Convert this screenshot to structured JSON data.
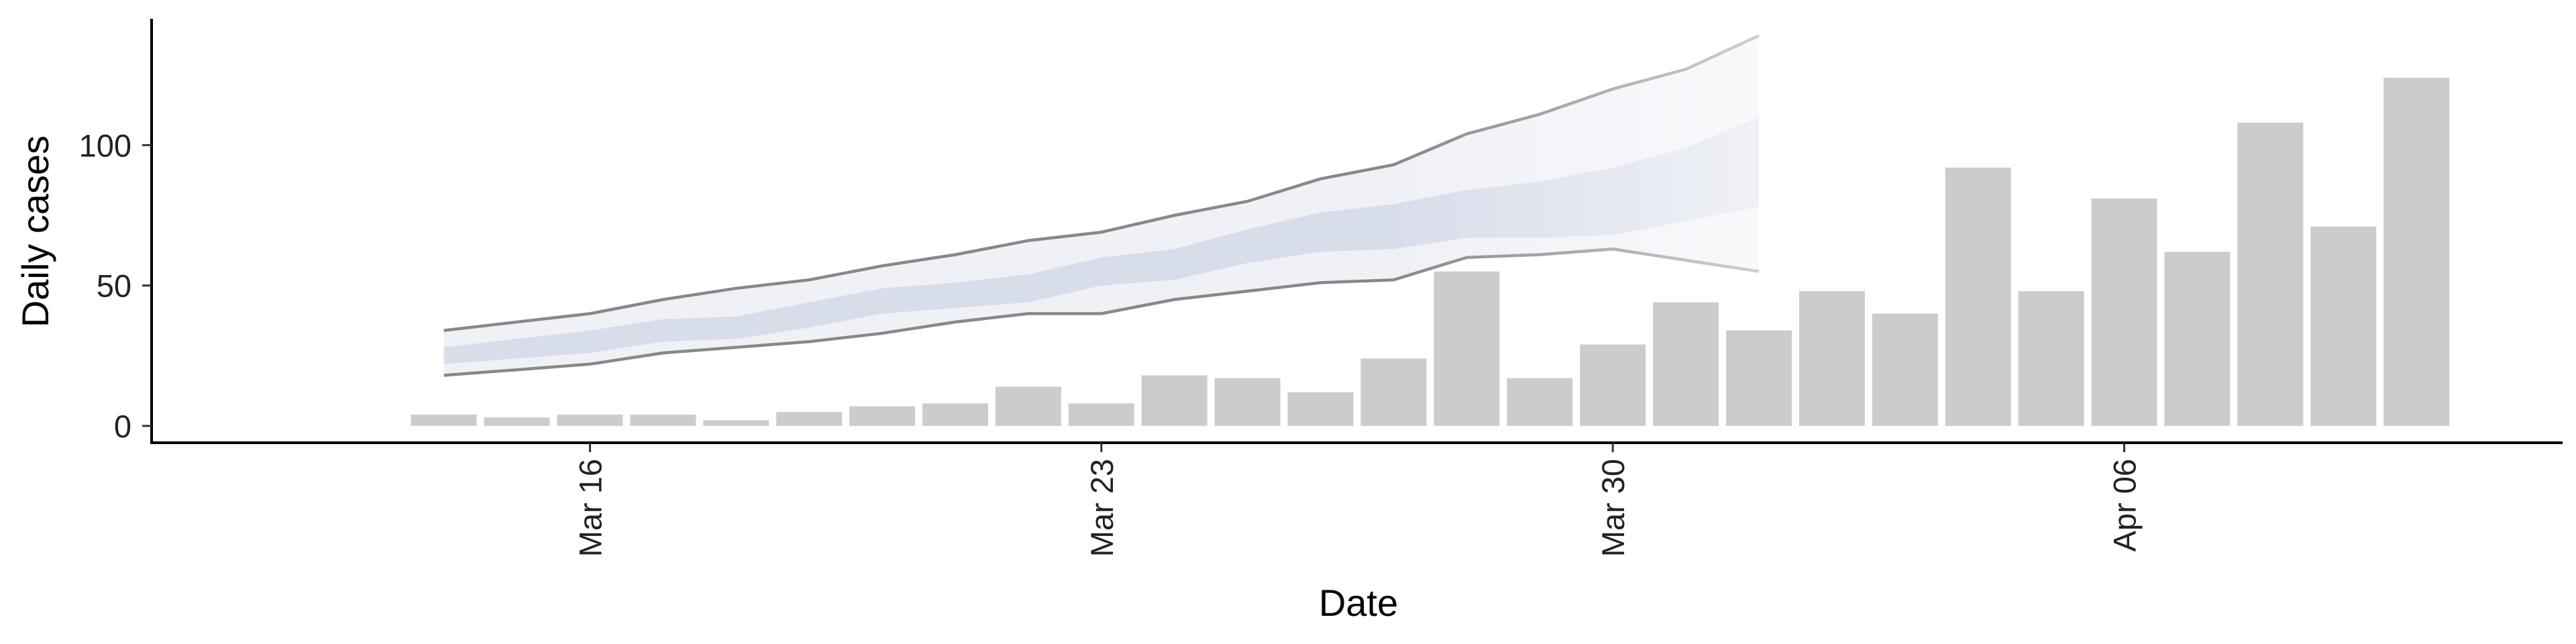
{
  "chart_data": {
    "type": "bar",
    "xlabel": "Date",
    "ylabel": "Daily cases",
    "ylim": [
      -6,
      145
    ],
    "y_ticks": [
      0,
      50,
      100
    ],
    "y_tick_labels": [
      "0",
      "50",
      "100"
    ],
    "x_ticks": [
      {
        "date": "2020-03-16",
        "label": "Mar 16"
      },
      {
        "date": "2020-03-23",
        "label": "Mar 23"
      },
      {
        "date": "2020-03-30",
        "label": "Mar 30"
      },
      {
        "date": "2020-04-06",
        "label": "Apr 06"
      }
    ],
    "x_range": [
      "2020-03-10",
      "2020-04-12"
    ],
    "grid": false,
    "colors": {
      "bars": "#cccccc",
      "band_outer": "#eeeff6",
      "band_inner": "#d4d9e8",
      "band_lines": "#888888",
      "axis": "#000000"
    },
    "bars": [
      {
        "date": "2020-03-14",
        "value": 4
      },
      {
        "date": "2020-03-15",
        "value": 3
      },
      {
        "date": "2020-03-16",
        "value": 4
      },
      {
        "date": "2020-03-17",
        "value": 4
      },
      {
        "date": "2020-03-18",
        "value": 2
      },
      {
        "date": "2020-03-19",
        "value": 5
      },
      {
        "date": "2020-03-20",
        "value": 7
      },
      {
        "date": "2020-03-21",
        "value": 8
      },
      {
        "date": "2020-03-22",
        "value": 14
      },
      {
        "date": "2020-03-23",
        "value": 8
      },
      {
        "date": "2020-03-24",
        "value": 18
      },
      {
        "date": "2020-03-25",
        "value": 17
      },
      {
        "date": "2020-03-26",
        "value": 12
      },
      {
        "date": "2020-03-27",
        "value": 24
      },
      {
        "date": "2020-03-28",
        "value": 55
      },
      {
        "date": "2020-03-29",
        "value": 17
      },
      {
        "date": "2020-03-30",
        "value": 29
      },
      {
        "date": "2020-03-31",
        "value": 44
      },
      {
        "date": "2020-04-01",
        "value": 34
      },
      {
        "date": "2020-04-02",
        "value": 48
      },
      {
        "date": "2020-04-03",
        "value": 40
      },
      {
        "date": "2020-04-04",
        "value": 92
      },
      {
        "date": "2020-04-05",
        "value": 48
      },
      {
        "date": "2020-04-06",
        "value": 81
      },
      {
        "date": "2020-04-07",
        "value": 62
      },
      {
        "date": "2020-04-08",
        "value": 108
      },
      {
        "date": "2020-04-09",
        "value": 71
      },
      {
        "date": "2020-04-10",
        "value": 124
      }
    ],
    "band": {
      "dates": [
        "2020-03-14",
        "2020-03-15",
        "2020-03-16",
        "2020-03-17",
        "2020-03-18",
        "2020-03-19",
        "2020-03-20",
        "2020-03-21",
        "2020-03-22",
        "2020-03-23",
        "2020-03-24",
        "2020-03-25",
        "2020-03-26",
        "2020-03-27",
        "2020-03-28",
        "2020-03-29",
        "2020-03-30",
        "2020-03-31",
        "2020-04-01"
      ],
      "lower_90": [
        18,
        20,
        22,
        26,
        28,
        30,
        33,
        37,
        40,
        40,
        45,
        48,
        51,
        52,
        60,
        61,
        63,
        59,
        55
      ],
      "lower_50": [
        22,
        24,
        26,
        30,
        31,
        35,
        40,
        42,
        44,
        50,
        52,
        58,
        62,
        63,
        67,
        67,
        68,
        73,
        78
      ],
      "upper_50": [
        28,
        31,
        34,
        38,
        39,
        44,
        49,
        51,
        54,
        60,
        63,
        70,
        76,
        79,
        84,
        87,
        92,
        99,
        110
      ],
      "upper_90": [
        34,
        37,
        40,
        45,
        49,
        52,
        57,
        61,
        66,
        69,
        75,
        80,
        88,
        93,
        104,
        111,
        120,
        127,
        139
      ]
    }
  }
}
